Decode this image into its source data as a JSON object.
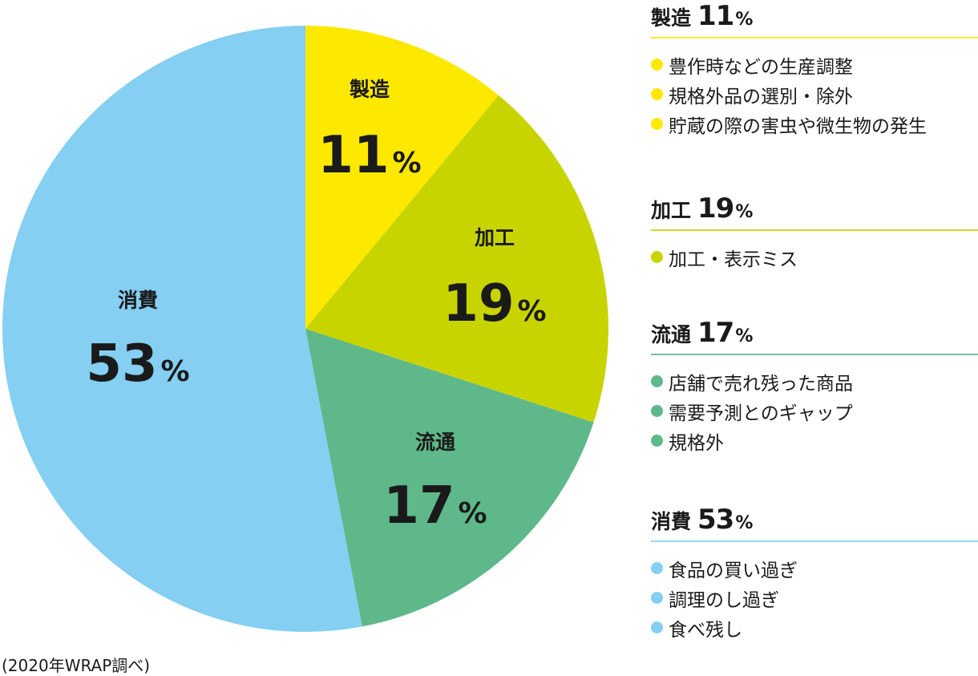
{
  "chart_data": {
    "type": "pie",
    "slices": [
      {
        "label": "製造",
        "value": 11,
        "unit": "%",
        "color": "#fde800"
      },
      {
        "label": "加工",
        "value": 19,
        "unit": "%",
        "color": "#c8d400"
      },
      {
        "label": "流通",
        "value": 17,
        "unit": "%",
        "color": "#5eb88a"
      },
      {
        "label": "消費",
        "value": 53,
        "unit": "%",
        "color": "#84cff2"
      }
    ],
    "start_angle_deg": 0,
    "direction": "clockwise"
  },
  "legend": [
    {
      "title": "製造",
      "percent": "11",
      "unit": "%",
      "color": "#fde800",
      "items": [
        "豊作時などの生産調整",
        "規格外品の選別・除外",
        "貯蔵の際の害虫や微生物の発生"
      ]
    },
    {
      "title": "加工",
      "percent": "19",
      "unit": "%",
      "color": "#c8d400",
      "items": [
        "加工・表示ミス"
      ]
    },
    {
      "title": "流通",
      "percent": "17",
      "unit": "%",
      "color": "#5eb88a",
      "items": [
        "店舗で売れ残った商品",
        "需要予測とのギャップ",
        "規格外"
      ]
    },
    {
      "title": "消費",
      "percent": "53",
      "unit": "%",
      "color": "#84cff2",
      "items": [
        "食品の買い過ぎ",
        "調理のし過ぎ",
        "食べ残し"
      ]
    }
  ],
  "source": "(2020年WRAP調べ)"
}
